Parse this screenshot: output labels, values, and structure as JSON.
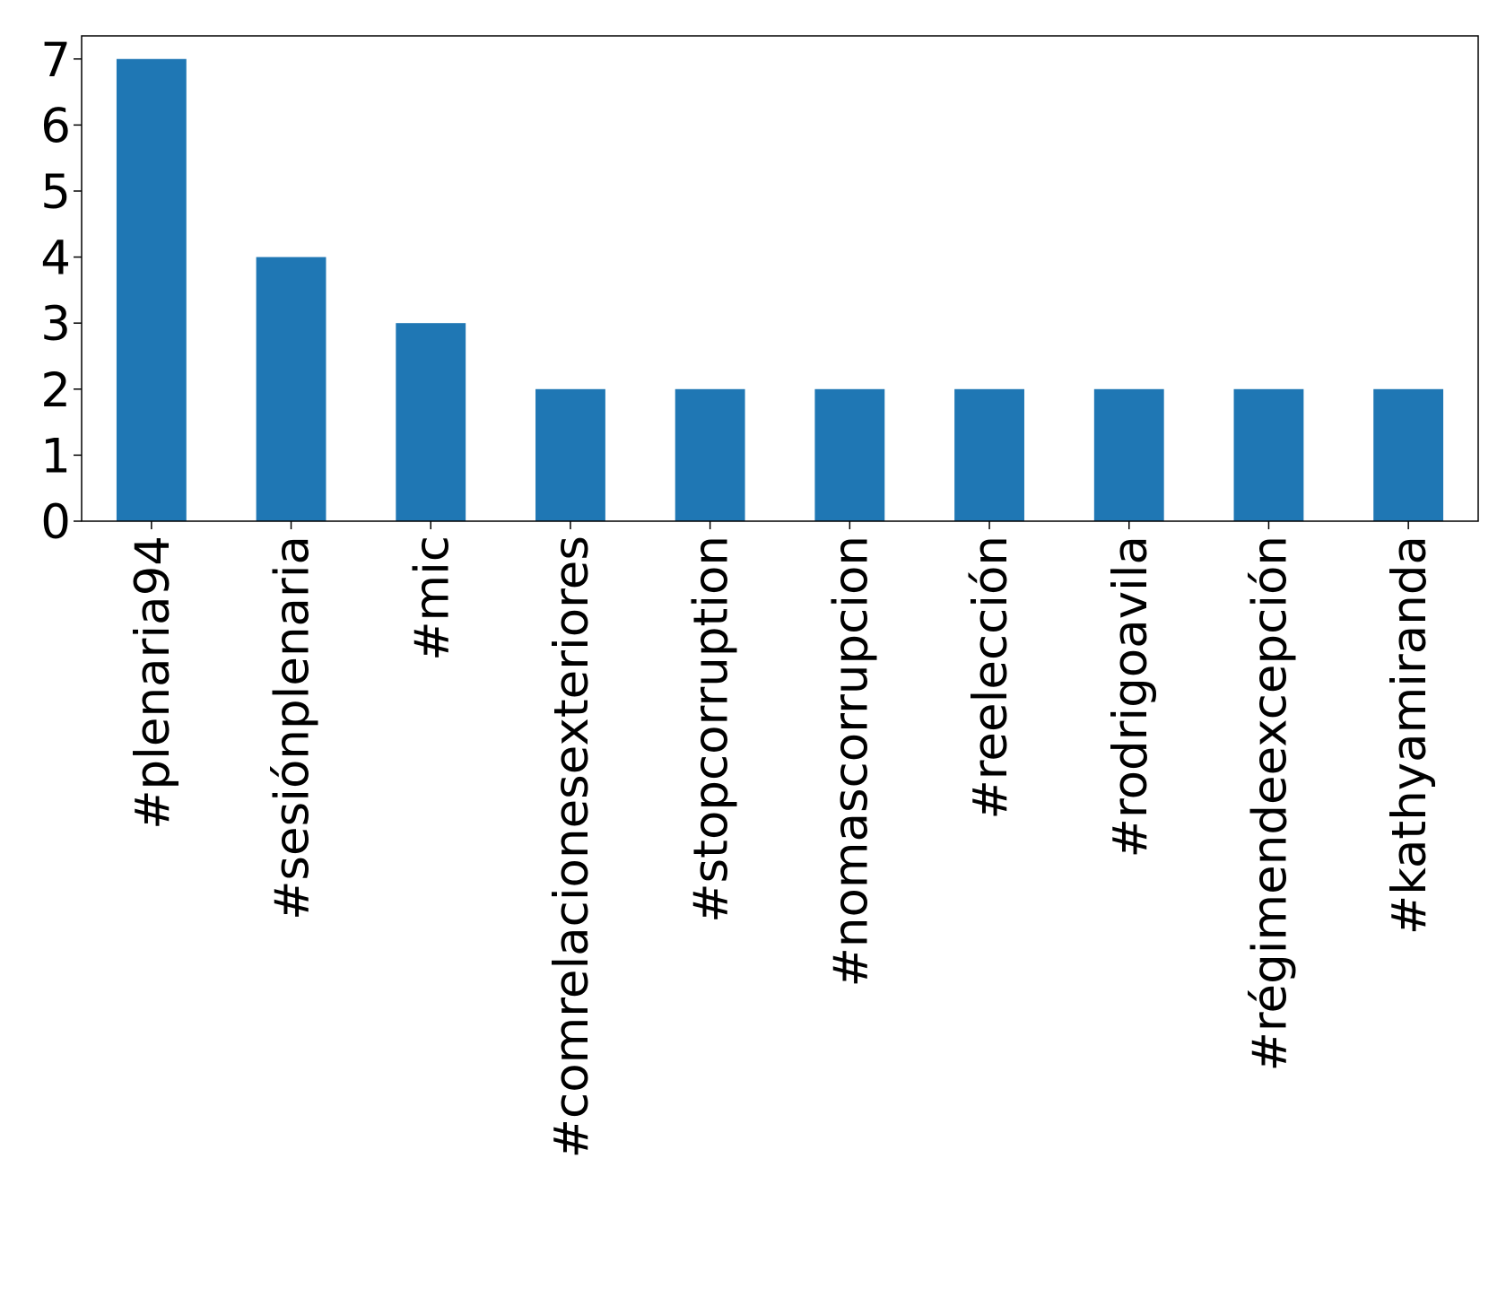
{
  "chart_data": {
    "type": "bar",
    "categories": [
      "#plenaria94",
      "#sesiónplenaria",
      "#mic",
      "#comrelacionesexteriores",
      "#stopcorruption",
      "#nomascorrupcion",
      "#reelección",
      "#rodrigoavila",
      "#régimendeexcepción",
      "#kathyamiranda"
    ],
    "values": [
      7,
      4,
      3,
      2,
      2,
      2,
      2,
      2,
      2,
      2
    ],
    "color": "#1f77b4",
    "ylim": [
      0,
      7.35
    ],
    "yticks": [
      0,
      1,
      2,
      3,
      4,
      5,
      6,
      7
    ],
    "grid": false
  }
}
